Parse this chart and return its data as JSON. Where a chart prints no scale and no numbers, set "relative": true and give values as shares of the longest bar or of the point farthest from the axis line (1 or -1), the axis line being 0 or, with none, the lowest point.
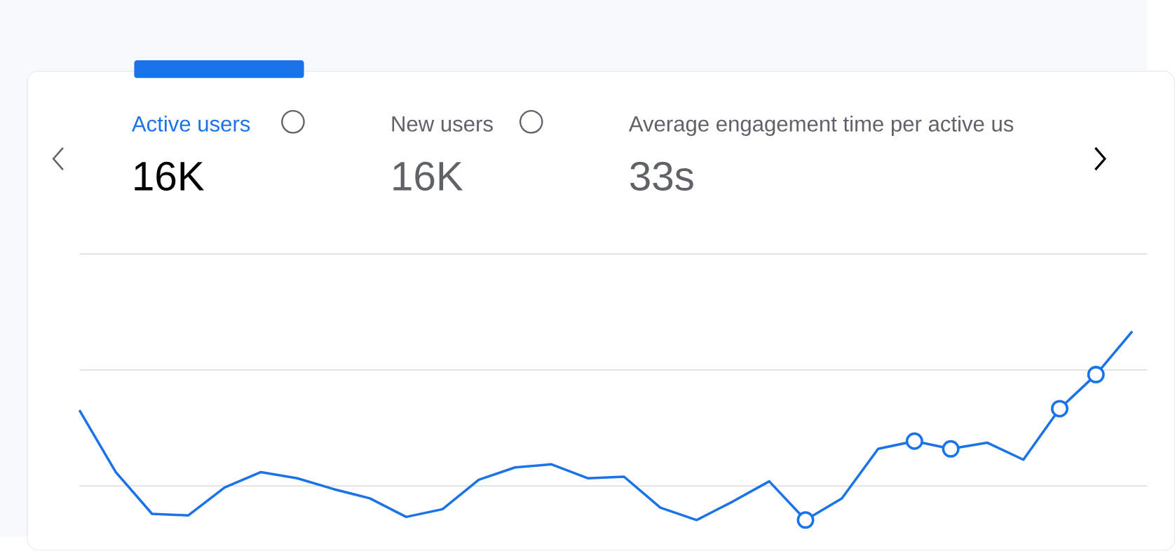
{
  "chart_data": {
    "type": "line",
    "relative": true,
    "ref_lines": [
      {
        "axis": "y",
        "value": 0.75,
        "color": "#dadce0"
      },
      {
        "axis": "y",
        "value": 1.5,
        "color": "#dadce0"
      }
    ],
    "title": "Active users",
    "annotations": [
      "16K",
      "New users",
      "16K",
      "Average engagement time per active us",
      "33s"
    ],
    "categories": [
      null,
      null,
      null,
      null,
      null,
      null,
      null,
      null,
      null,
      null,
      null,
      null,
      null,
      null,
      null,
      null,
      null,
      null,
      null,
      null,
      null,
      null,
      null,
      null,
      null,
      null,
      null,
      null,
      null,
      null
    ],
    "series": [
      {
        "color": "#1a73e8",
        "values": [
          0.49,
          0.09,
          -0.18,
          -0.19,
          -0.01,
          0.09,
          0.05,
          -0.02,
          -0.08,
          -0.2,
          -0.15,
          0.04,
          0.12,
          0.14,
          0.05,
          0.06,
          -0.14,
          -0.22,
          -0.1,
          0.03,
          -0.22,
          -0.08,
          0.24,
          0.29,
          0.24,
          0.28,
          0.17,
          0.5,
          0.72,
          1
        ]
      }
    ]
  }
}
